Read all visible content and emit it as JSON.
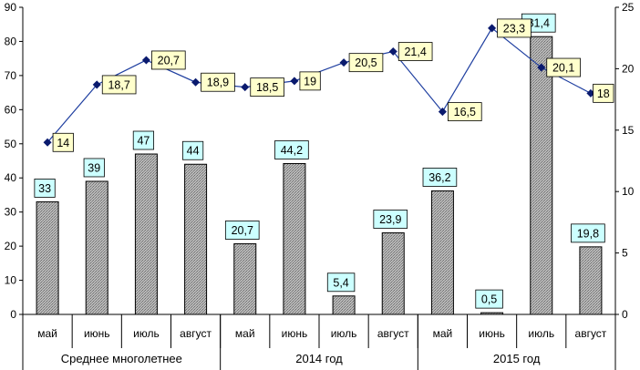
{
  "chart_data": {
    "type": "bar+line",
    "title": "",
    "categories": [
      "май",
      "июнь",
      "июль",
      "август",
      "май",
      "июнь",
      "июль",
      "август",
      "май",
      "июнь",
      "июль",
      "август"
    ],
    "groups": [
      {
        "label": "Среднее многолетнее",
        "span": [
          0,
          3
        ]
      },
      {
        "label": "2014 год",
        "span": [
          4,
          7
        ]
      },
      {
        "label": "2015 год",
        "span": [
          8,
          11
        ]
      }
    ],
    "left_axis": {
      "min": 0,
      "max": 90,
      "step": 10,
      "ticks": [
        "0",
        "10",
        "20",
        "30",
        "40",
        "50",
        "60",
        "70",
        "80",
        "90"
      ]
    },
    "right_axis": {
      "min": 0,
      "max": 25,
      "step": 5,
      "ticks": [
        "0",
        "5",
        "10",
        "15",
        "20",
        "25"
      ]
    },
    "bar_series": {
      "axis": "left",
      "values": [
        33,
        39,
        47,
        44,
        20.7,
        44.2,
        5.4,
        23.9,
        36.2,
        0.5,
        81.4,
        19.8
      ],
      "labels": [
        "33",
        "39",
        "47",
        "44",
        "20,7",
        "44,2",
        "5,4",
        "23,9",
        "36,2",
        "0,5",
        "81,4",
        "19,8"
      ],
      "label_bg": "#ccffff",
      "bar_color": "#a6a6a6"
    },
    "line_series": {
      "axis": "right",
      "values": [
        14,
        18.7,
        20.7,
        18.9,
        18.5,
        19,
        20.5,
        21.4,
        16.5,
        23.3,
        20.1,
        18
      ],
      "labels": [
        "14",
        "18,7",
        "20,7",
        "18,9",
        "18,5",
        "19",
        "20,5",
        "21,4",
        "16,5",
        "23,3",
        "20,1",
        "18"
      ],
      "label_bg": "#ffffcc",
      "line_color": "#1f3fa0",
      "marker_color": "#0a1a6e"
    },
    "grid": false,
    "legend": "none"
  }
}
